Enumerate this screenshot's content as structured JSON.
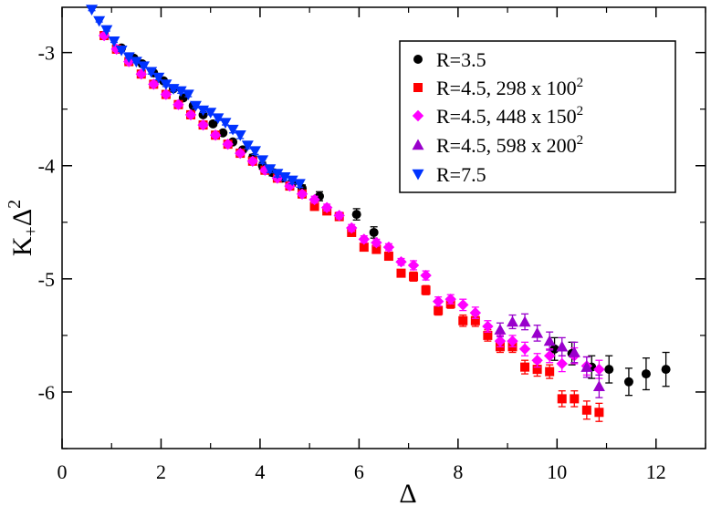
{
  "chart_data": {
    "type": "scatter",
    "xlabel": "Δ",
    "ylabel_main": "K",
    "ylabel_sub": "+",
    "ylabel_tail": "Δ",
    "ylabel_sup": "2",
    "xlim": [
      0,
      13
    ],
    "ylim": [
      -6.5,
      -2.6
    ],
    "xticks": [
      0,
      2,
      4,
      6,
      8,
      10,
      12
    ],
    "yticks": [
      -3,
      -4,
      -5,
      -6
    ],
    "tick_labels_x": [
      "0",
      "2",
      "4",
      "6",
      "8",
      "10",
      "12"
    ],
    "tick_labels_y": [
      "-3",
      "-4",
      "-5",
      "-6"
    ],
    "grid": false,
    "legend_position": "top-right",
    "series": [
      {
        "name": "R=3.5",
        "legend_main": "R=3.5",
        "legend_sup": "",
        "marker": "circle",
        "color": "#000000",
        "x": [
          1.2,
          1.45,
          1.62,
          1.85,
          2.05,
          2.25,
          2.45,
          2.65,
          2.85,
          3.05,
          3.25,
          3.45,
          3.65,
          3.85,
          4.05,
          4.25,
          4.45,
          4.65,
          4.85,
          5.2,
          5.95,
          6.3,
          9.95,
          10.3,
          10.7,
          11.05,
          11.45,
          11.8,
          12.2
        ],
        "y": [
          -2.96,
          -3.05,
          -3.1,
          -3.18,
          -3.25,
          -3.32,
          -3.4,
          -3.47,
          -3.55,
          -3.63,
          -3.71,
          -3.79,
          -3.86,
          -3.93,
          -4.0,
          -4.06,
          -4.11,
          -4.15,
          -4.2,
          -4.27,
          -4.43,
          -4.59,
          -5.62,
          -5.66,
          -5.78,
          -5.8,
          -5.91,
          -5.84,
          -5.8
        ],
        "err": [
          0.02,
          0.02,
          0.02,
          0.02,
          0.02,
          0.02,
          0.02,
          0.02,
          0.02,
          0.02,
          0.02,
          0.02,
          0.02,
          0.03,
          0.03,
          0.03,
          0.03,
          0.03,
          0.03,
          0.04,
          0.05,
          0.05,
          0.1,
          0.1,
          0.1,
          0.12,
          0.12,
          0.14,
          0.15
        ]
      },
      {
        "name": "R=4.5, 298 x 100^2",
        "legend_main": "R=4.5, 298 x 100",
        "legend_sup": "2",
        "marker": "square",
        "color": "#ff0000",
        "x": [
          0.85,
          1.1,
          1.35,
          1.6,
          1.85,
          2.1,
          2.35,
          2.6,
          2.85,
          3.1,
          3.35,
          3.6,
          3.85,
          4.1,
          4.35,
          4.6,
          4.85,
          5.1,
          5.35,
          5.6,
          5.85,
          6.1,
          6.35,
          6.6,
          6.85,
          7.1,
          7.35,
          7.6,
          7.85,
          8.1,
          8.35,
          8.6,
          8.85,
          9.1,
          9.35,
          9.6,
          9.85,
          10.1,
          10.35,
          10.6,
          10.85
        ],
        "y": [
          -2.85,
          -2.97,
          -3.08,
          -3.19,
          -3.28,
          -3.37,
          -3.46,
          -3.55,
          -3.64,
          -3.73,
          -3.81,
          -3.89,
          -3.96,
          -4.04,
          -4.11,
          -4.18,
          -4.25,
          -4.36,
          -4.4,
          -4.45,
          -4.59,
          -4.72,
          -4.74,
          -4.8,
          -4.95,
          -4.98,
          -5.1,
          -5.28,
          -5.22,
          -5.37,
          -5.37,
          -5.5,
          -5.6,
          -5.6,
          -5.78,
          -5.8,
          -5.82,
          -6.06,
          -6.06,
          -6.16,
          -6.18
        ],
        "err": [
          0.02,
          0.02,
          0.02,
          0.02,
          0.02,
          0.02,
          0.02,
          0.02,
          0.02,
          0.02,
          0.02,
          0.02,
          0.02,
          0.02,
          0.02,
          0.02,
          0.02,
          0.03,
          0.03,
          0.03,
          0.03,
          0.03,
          0.03,
          0.03,
          0.03,
          0.04,
          0.04,
          0.04,
          0.04,
          0.05,
          0.05,
          0.05,
          0.05,
          0.05,
          0.06,
          0.06,
          0.06,
          0.07,
          0.07,
          0.08,
          0.08
        ]
      },
      {
        "name": "R=4.5, 448 x 150^2",
        "legend_main": "R=4.5, 448 x 150",
        "legend_sup": "2",
        "marker": "diamond",
        "color": "#ff00ff",
        "x": [
          0.85,
          1.1,
          1.35,
          1.6,
          1.85,
          2.1,
          2.35,
          2.6,
          2.85,
          3.1,
          3.35,
          3.6,
          3.85,
          4.1,
          4.35,
          4.6,
          4.85,
          5.1,
          5.35,
          5.6,
          5.85,
          6.1,
          6.35,
          6.6,
          6.85,
          7.1,
          7.35,
          7.6,
          7.85,
          8.1,
          8.35,
          8.6,
          8.85,
          9.1,
          9.35,
          9.6,
          9.85,
          10.1,
          10.35,
          10.6,
          10.85
        ],
        "y": [
          -2.85,
          -2.97,
          -3.08,
          -3.19,
          -3.28,
          -3.37,
          -3.46,
          -3.55,
          -3.64,
          -3.73,
          -3.81,
          -3.89,
          -3.96,
          -4.04,
          -4.11,
          -4.18,
          -4.25,
          -4.3,
          -4.37,
          -4.44,
          -4.55,
          -4.65,
          -4.68,
          -4.72,
          -4.85,
          -4.88,
          -4.97,
          -5.2,
          -5.18,
          -5.23,
          -5.3,
          -5.42,
          -5.55,
          -5.55,
          -5.62,
          -5.72,
          -5.68,
          -5.75,
          -5.68,
          -5.77,
          -5.8
        ],
        "err": [
          0.02,
          0.02,
          0.02,
          0.02,
          0.02,
          0.02,
          0.02,
          0.02,
          0.02,
          0.02,
          0.02,
          0.02,
          0.02,
          0.02,
          0.02,
          0.02,
          0.02,
          0.03,
          0.03,
          0.03,
          0.03,
          0.03,
          0.03,
          0.03,
          0.03,
          0.04,
          0.04,
          0.04,
          0.04,
          0.05,
          0.05,
          0.05,
          0.05,
          0.05,
          0.06,
          0.06,
          0.06,
          0.07,
          0.07,
          0.08,
          0.08
        ]
      },
      {
        "name": "R=4.5, 598 x 200^2",
        "legend_main": "R=4.5, 598 x 200",
        "legend_sup": "2",
        "marker": "triangle-up",
        "color": "#9900cc",
        "x": [
          8.85,
          9.1,
          9.35,
          9.6,
          9.85,
          10.1,
          10.35,
          10.6,
          10.85
        ],
        "y": [
          -5.45,
          -5.38,
          -5.38,
          -5.48,
          -5.55,
          -5.6,
          -5.65,
          -5.78,
          -5.95
        ],
        "err": [
          0.06,
          0.06,
          0.07,
          0.07,
          0.08,
          0.08,
          0.09,
          0.09,
          0.1
        ]
      },
      {
        "name": "R=7.5",
        "legend_main": "R=7.5",
        "legend_sup": "",
        "marker": "triangle-down",
        "color": "#0033ff",
        "x": [
          0.6,
          0.75,
          0.9,
          1.05,
          1.2,
          1.35,
          1.5,
          1.65,
          1.8,
          1.95,
          2.1,
          2.25,
          2.4,
          2.55,
          2.7,
          2.85,
          3.0,
          3.15,
          3.3,
          3.45,
          3.6,
          3.75,
          3.9,
          4.05,
          4.2,
          4.35,
          4.5,
          4.65,
          4.8
        ],
        "y": [
          -2.62,
          -2.72,
          -2.8,
          -2.9,
          -2.98,
          -3.04,
          -3.08,
          -3.12,
          -3.17,
          -3.22,
          -3.28,
          -3.32,
          -3.34,
          -3.37,
          -3.47,
          -3.51,
          -3.53,
          -3.58,
          -3.62,
          -3.68,
          -3.73,
          -3.82,
          -3.87,
          -3.95,
          -4.03,
          -4.07,
          -4.1,
          -4.13,
          -4.16
        ],
        "err": [
          0.01,
          0.01,
          0.01,
          0.01,
          0.01,
          0.01,
          0.01,
          0.01,
          0.02,
          0.02,
          0.02,
          0.02,
          0.02,
          0.02,
          0.02,
          0.02,
          0.02,
          0.02,
          0.02,
          0.03,
          0.03,
          0.03,
          0.03,
          0.03,
          0.03,
          0.03,
          0.03,
          0.03,
          0.03
        ]
      }
    ]
  }
}
